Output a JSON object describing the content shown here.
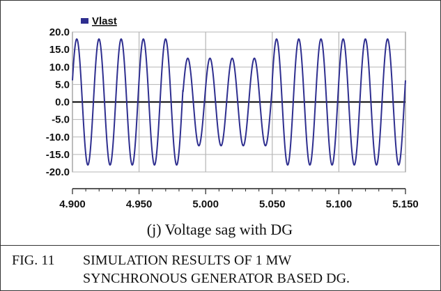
{
  "chart_data": {
    "type": "line",
    "legend": {
      "label": "Vlast",
      "color": "#2e2e8f",
      "placement": "top-left"
    },
    "yticks": [
      "20.0",
      "15.0",
      "10.0",
      "5.0",
      "0.0",
      "-5.0",
      "-10.0",
      "-15.0",
      "-20.0"
    ],
    "xticks": [
      "4.900",
      "4.950",
      "5.000",
      "5.050",
      "5.100",
      "5.150"
    ],
    "ylim": [
      -20,
      20
    ],
    "xlim": [
      4.9,
      5.15
    ],
    "grid": true,
    "series": [
      {
        "name": "Vlast",
        "color": "#2e2e8f",
        "frequency_hz": 60,
        "segments": [
          {
            "x_start": 4.9,
            "x_end": 4.983,
            "amplitude": 18.0
          },
          {
            "x_start": 4.983,
            "x_end": 5.05,
            "amplitude": 12.5
          },
          {
            "x_start": 5.05,
            "x_end": 5.15,
            "amplitude": 18.0
          }
        ]
      }
    ]
  },
  "sub_caption": "(j) Voltage sag with DG",
  "figure": {
    "number": "FIG. 11",
    "title_line1": "SIMULATION RESULTS OF 1 MW",
    "title_line2": "SYNCHRONOUS GENERATOR BASED DG."
  }
}
